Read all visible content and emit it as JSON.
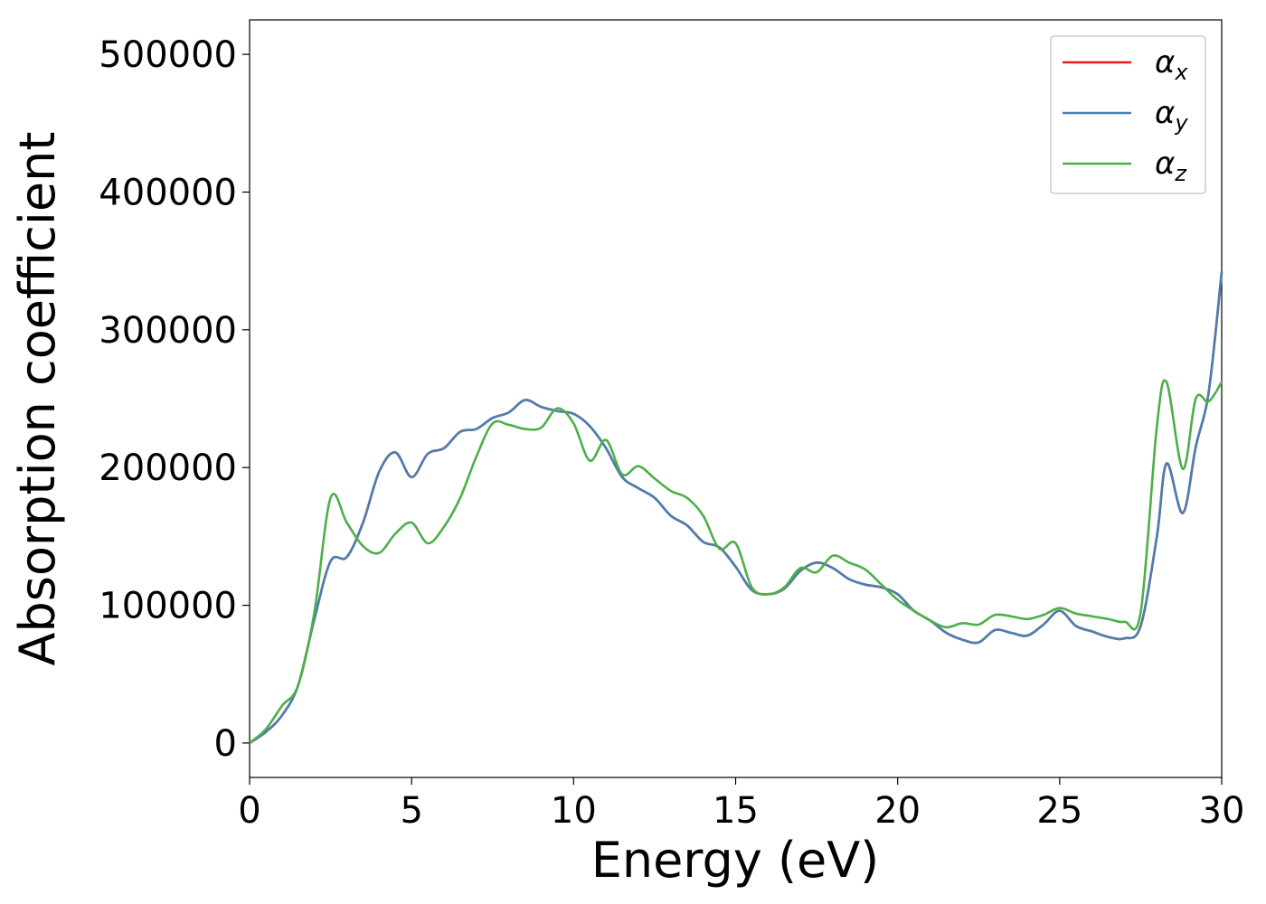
{
  "chart_data": {
    "type": "line",
    "xlabel": "Energy (eV)",
    "ylabel": "Absorption coefficient",
    "xlim": [
      0,
      30
    ],
    "ylim": [
      -25000,
      525000
    ],
    "xticks": [
      0,
      5,
      10,
      15,
      20,
      25,
      30
    ],
    "xtick_labels": [
      "0",
      "5",
      "10",
      "15",
      "20",
      "25",
      "30"
    ],
    "yticks": [
      0,
      100000,
      200000,
      300000,
      400000,
      500000
    ],
    "ytick_labels": [
      "0",
      "100000",
      "200000",
      "300000",
      "400000",
      "500000"
    ],
    "grid": false,
    "legend_position": "top-right",
    "series": [
      {
        "name": "α_x",
        "label_main": "α",
        "label_sub": "x",
        "color": "#e41a1c",
        "x": [
          0,
          0.5,
          1.0,
          1.5,
          2.0,
          2.5,
          3.0,
          3.5,
          4.0,
          4.5,
          5.0,
          5.5,
          6.0,
          6.5,
          7.0,
          7.5,
          8.0,
          8.5,
          9.0,
          9.5,
          10.0,
          10.5,
          11.0,
          11.5,
          12.0,
          12.5,
          13.0,
          13.5,
          14.0,
          14.5,
          15.0,
          15.5,
          16.0,
          16.5,
          17.0,
          17.5,
          18.0,
          18.5,
          19.0,
          19.5,
          20.0,
          20.5,
          21.0,
          21.5,
          22.0,
          22.5,
          23.0,
          23.5,
          24.0,
          24.5,
          25.0,
          25.5,
          26.0,
          26.5,
          27.0,
          27.5,
          28.0,
          28.3,
          28.8,
          29.2,
          29.6,
          30.0
        ],
        "y": [
          0,
          8000,
          20000,
          42000,
          90000,
          132000,
          135000,
          160000,
          197000,
          211000,
          193000,
          210000,
          214000,
          226000,
          228000,
          236000,
          240000,
          249000,
          244000,
          241000,
          239000,
          230000,
          214000,
          193000,
          185000,
          178000,
          165000,
          158000,
          146000,
          142000,
          128000,
          111000,
          108000,
          112000,
          125000,
          131000,
          127000,
          119000,
          115000,
          113000,
          108000,
          96000,
          89000,
          80000,
          75000,
          73000,
          82000,
          80000,
          78000,
          86000,
          96000,
          85000,
          81000,
          77000,
          76000,
          85000,
          150000,
          203000,
          167000,
          215000,
          255000,
          342000
        ]
      },
      {
        "name": "α_y",
        "label_main": "α",
        "label_sub": "y",
        "color": "#4a7fb0",
        "x": [
          0,
          0.5,
          1.0,
          1.5,
          2.0,
          2.5,
          3.0,
          3.5,
          4.0,
          4.5,
          5.0,
          5.5,
          6.0,
          6.5,
          7.0,
          7.5,
          8.0,
          8.5,
          9.0,
          9.5,
          10.0,
          10.5,
          11.0,
          11.5,
          12.0,
          12.5,
          13.0,
          13.5,
          14.0,
          14.5,
          15.0,
          15.5,
          16.0,
          16.5,
          17.0,
          17.5,
          18.0,
          18.5,
          19.0,
          19.5,
          20.0,
          20.5,
          21.0,
          21.5,
          22.0,
          22.5,
          23.0,
          23.5,
          24.0,
          24.5,
          25.0,
          25.5,
          26.0,
          26.5,
          27.0,
          27.5,
          28.0,
          28.3,
          28.8,
          29.2,
          29.6,
          30.0
        ],
        "y": [
          0,
          8000,
          20000,
          42000,
          90000,
          132000,
          135000,
          160000,
          197000,
          211000,
          193000,
          210000,
          214000,
          226000,
          228000,
          236000,
          240000,
          249000,
          244000,
          241000,
          239000,
          230000,
          214000,
          193000,
          185000,
          178000,
          165000,
          158000,
          146000,
          142000,
          128000,
          111000,
          108000,
          112000,
          125000,
          131000,
          127000,
          119000,
          115000,
          113000,
          108000,
          96000,
          89000,
          80000,
          75000,
          73000,
          82000,
          80000,
          78000,
          86000,
          96000,
          85000,
          81000,
          77000,
          76000,
          85000,
          150000,
          203000,
          167000,
          215000,
          255000,
          342000
        ]
      },
      {
        "name": "α_z",
        "label_main": "α",
        "label_sub": "z",
        "color": "#4daf4a",
        "x": [
          0,
          0.5,
          1.0,
          1.5,
          2.0,
          2.5,
          3.0,
          3.5,
          4.0,
          4.5,
          5.0,
          5.5,
          6.0,
          6.5,
          7.0,
          7.5,
          8.0,
          8.5,
          9.0,
          9.5,
          10.0,
          10.5,
          11.0,
          11.5,
          12.0,
          12.5,
          13.0,
          13.5,
          14.0,
          14.5,
          15.0,
          15.5,
          16.0,
          16.5,
          17.0,
          17.5,
          18.0,
          18.5,
          19.0,
          19.5,
          20.0,
          20.5,
          21.0,
          21.5,
          22.0,
          22.5,
          23.0,
          23.5,
          24.0,
          24.5,
          25.0,
          25.5,
          26.0,
          26.5,
          27.0,
          27.5,
          28.0,
          28.3,
          28.8,
          29.2,
          29.6,
          30.0
        ],
        "y": [
          0,
          10000,
          27000,
          42000,
          95000,
          178000,
          160000,
          143000,
          138000,
          152000,
          160000,
          145000,
          157000,
          178000,
          208000,
          232000,
          231000,
          228000,
          229000,
          243000,
          232000,
          205000,
          220000,
          195000,
          201000,
          192000,
          183000,
          178000,
          165000,
          141000,
          145000,
          113000,
          108000,
          113000,
          127000,
          124000,
          136000,
          131000,
          126000,
          115000,
          104000,
          96000,
          89000,
          84000,
          87000,
          86000,
          93000,
          92000,
          90000,
          93000,
          98000,
          94000,
          92000,
          90000,
          88000,
          95000,
          230000,
          262000,
          199000,
          250000,
          248000,
          262000
        ]
      }
    ]
  }
}
